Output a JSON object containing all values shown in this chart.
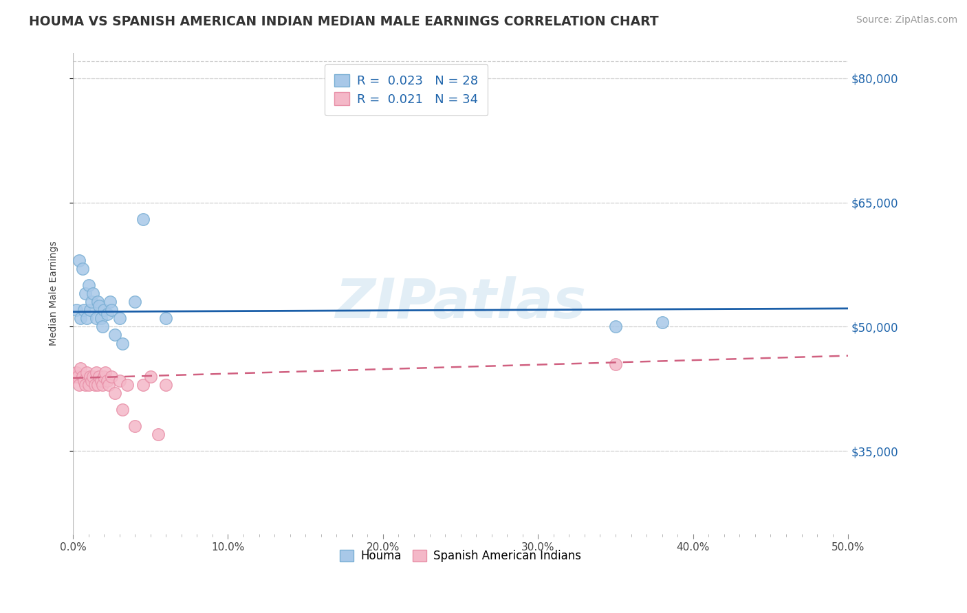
{
  "title": "HOUMA VS SPANISH AMERICAN INDIAN MEDIAN MALE EARNINGS CORRELATION CHART",
  "source_text": "Source: ZipAtlas.com",
  "ylabel": "Median Male Earnings",
  "xlim": [
    0.0,
    0.5
  ],
  "ylim": [
    25000,
    83000
  ],
  "xtick_labels": [
    "0.0%",
    "",
    "",
    "",
    "",
    "",
    "",
    "",
    "",
    "",
    "10.0%",
    "",
    "",
    "",
    "",
    "",
    "",
    "",
    "",
    "",
    "20.0%",
    "",
    "",
    "",
    "",
    "",
    "",
    "",
    "",
    "",
    "30.0%",
    "",
    "",
    "",
    "",
    "",
    "",
    "",
    "",
    "",
    "40.0%",
    "",
    "",
    "",
    "",
    "",
    "",
    "",
    "",
    "",
    "50.0%"
  ],
  "xtick_values": [
    0.0,
    0.01,
    0.02,
    0.03,
    0.04,
    0.05,
    0.06,
    0.07,
    0.08,
    0.09,
    0.1,
    0.11,
    0.12,
    0.13,
    0.14,
    0.15,
    0.16,
    0.17,
    0.18,
    0.19,
    0.2,
    0.21,
    0.22,
    0.23,
    0.24,
    0.25,
    0.26,
    0.27,
    0.28,
    0.29,
    0.3,
    0.31,
    0.32,
    0.33,
    0.34,
    0.35,
    0.36,
    0.37,
    0.38,
    0.39,
    0.4,
    0.41,
    0.42,
    0.43,
    0.44,
    0.45,
    0.46,
    0.47,
    0.48,
    0.49,
    0.5
  ],
  "major_xtick_values": [
    0.0,
    0.1,
    0.2,
    0.3,
    0.4,
    0.5
  ],
  "major_xtick_labels": [
    "0.0%",
    "10.0%",
    "20.0%",
    "30.0%",
    "40.0%",
    "50.0%"
  ],
  "ytick_values": [
    35000,
    50000,
    65000,
    80000
  ],
  "ytick_labels": [
    "$35,000",
    "$50,000",
    "$65,000",
    "$80,000"
  ],
  "houma_R": 0.023,
  "houma_N": 28,
  "sai_R": 0.021,
  "sai_N": 34,
  "blue_fill": "#a8c8e8",
  "blue_edge": "#7aafd4",
  "pink_fill": "#f4b8c8",
  "pink_edge": "#e890a8",
  "blue_line_color": "#1a5ea8",
  "pink_line_color": "#d06080",
  "background_color": "#ffffff",
  "grid_color": "#d0d0d0",
  "title_fontsize": 13.5,
  "axis_label_fontsize": 10,
  "tick_fontsize": 11,
  "legend_fontsize": 13,
  "watermark": "ZIPatlas",
  "bottom_legend_labels": [
    "Houma",
    "Spanish American Indians"
  ],
  "houma_x": [
    0.002,
    0.004,
    0.005,
    0.006,
    0.007,
    0.008,
    0.009,
    0.01,
    0.011,
    0.012,
    0.013,
    0.015,
    0.016,
    0.017,
    0.018,
    0.019,
    0.02,
    0.022,
    0.024,
    0.025,
    0.027,
    0.03,
    0.032,
    0.04,
    0.045,
    0.06,
    0.35,
    0.38
  ],
  "houma_y": [
    52000,
    58000,
    51000,
    57000,
    52000,
    54000,
    51000,
    55000,
    52000,
    53000,
    54000,
    51000,
    53000,
    52500,
    51000,
    50000,
    52000,
    51500,
    53000,
    52000,
    49000,
    51000,
    48000,
    53000,
    63000,
    51000,
    50000,
    50500
  ],
  "sai_x": [
    0.001,
    0.002,
    0.003,
    0.004,
    0.005,
    0.006,
    0.007,
    0.008,
    0.009,
    0.01,
    0.011,
    0.012,
    0.013,
    0.014,
    0.015,
    0.016,
    0.017,
    0.018,
    0.019,
    0.02,
    0.021,
    0.022,
    0.023,
    0.025,
    0.027,
    0.03,
    0.032,
    0.035,
    0.04,
    0.045,
    0.05,
    0.055,
    0.06,
    0.35
  ],
  "sai_y": [
    44000,
    44500,
    44000,
    43000,
    45000,
    44000,
    43500,
    43000,
    44500,
    43000,
    44000,
    43500,
    44000,
    43000,
    44500,
    43000,
    44000,
    43500,
    43000,
    44000,
    44500,
    43500,
    43000,
    44000,
    42000,
    43500,
    40000,
    43000,
    38000,
    43000,
    44000,
    37000,
    43000,
    45500
  ],
  "houma_line_y0": 51800,
  "houma_line_y1": 52200,
  "sai_line_y0": 43800,
  "sai_line_y1": 46500
}
